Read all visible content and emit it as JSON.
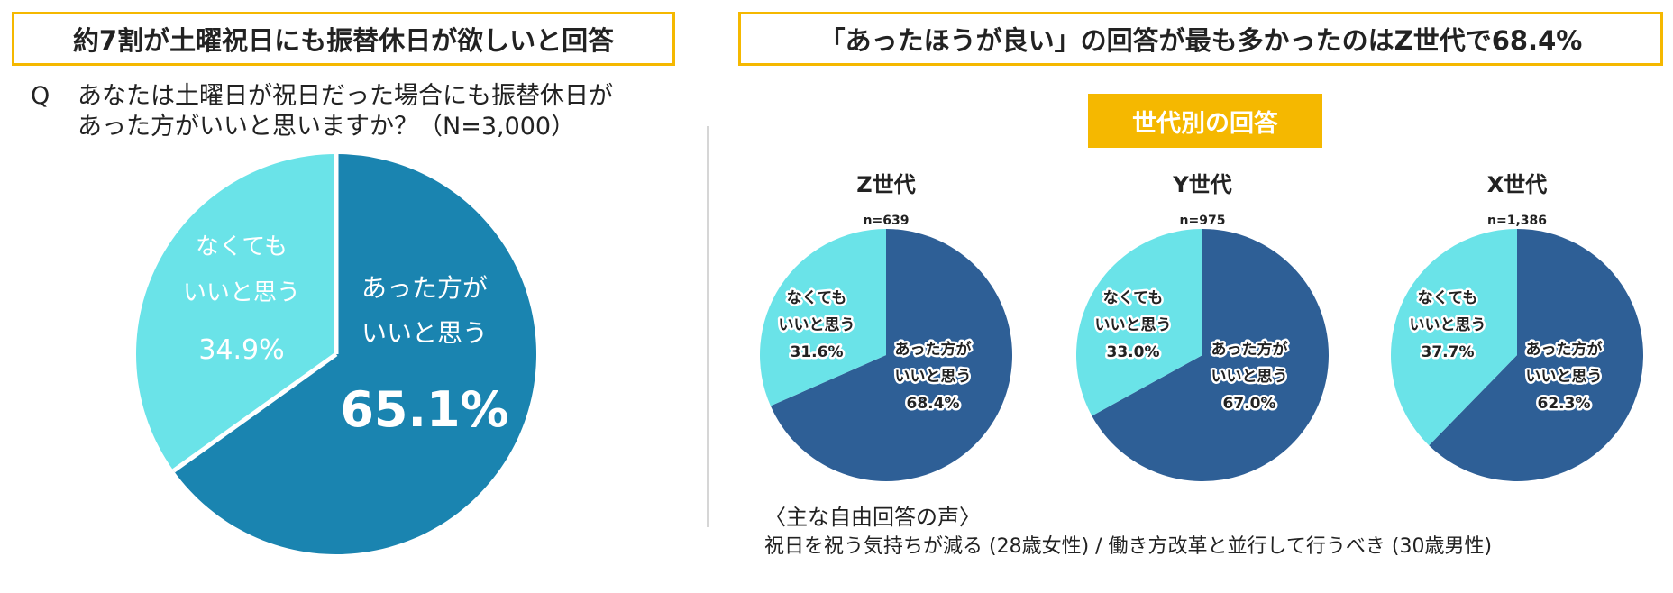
{
  "left_title": "約7割が土曜祝日にも振替休日が欲しいと回答",
  "right_title": "「あったほうが良い」の回答が最も多かったのはZ世代で68.4%",
  "question": {
    "mark": "Q",
    "line1": "あなたは土曜日が祝日だった場合にも振替休日が",
    "line2": "あった方がいいと思いますか？（N=3,000）"
  },
  "badge": "世代別の回答",
  "voices": {
    "title": "〈主な自由回答の声〉",
    "text": "祝日を祝う気持ちが減る (28歳女性) / 働き方改革と並行して行うべき (30歳男性)"
  },
  "colors": {
    "main_yes": "#1a84b0",
    "main_no": "#6ae3e8",
    "gen_yes": "#2e5f96",
    "gen_no": "#6ae3e8",
    "accent": "#f5b800"
  },
  "chart_data": [
    {
      "type": "pie",
      "slices": [
        {
          "label_lines": [
            "あった方が",
            "いいと思う"
          ],
          "value": 65.1,
          "value_text": "65.1%"
        },
        {
          "label_lines": [
            "なくても",
            "いいと思う"
          ],
          "value": 34.9,
          "value_text": "34.9%"
        }
      ]
    },
    {
      "type": "pie",
      "title": "Z世代",
      "n": "n=639",
      "slices": [
        {
          "label_lines": [
            "あった方が",
            "いいと思う"
          ],
          "value": 68.4,
          "value_text": "68.4%"
        },
        {
          "label_lines": [
            "なくても",
            "いいと思う"
          ],
          "value": 31.6,
          "value_text": "31.6%"
        }
      ]
    },
    {
      "type": "pie",
      "title": "Y世代",
      "n": "n=975",
      "slices": [
        {
          "label_lines": [
            "あった方が",
            "いいと思う"
          ],
          "value": 67.0,
          "value_text": "67.0%"
        },
        {
          "label_lines": [
            "なくても",
            "いいと思う"
          ],
          "value": 33.0,
          "value_text": "33.0%"
        }
      ]
    },
    {
      "type": "pie",
      "title": "X世代",
      "n": "n=1,386",
      "slices": [
        {
          "label_lines": [
            "あった方が",
            "いいと思う"
          ],
          "value": 62.3,
          "value_text": "62.3%"
        },
        {
          "label_lines": [
            "なくても",
            "いいと思う"
          ],
          "value": 37.7,
          "value_text": "37.7%"
        }
      ]
    }
  ]
}
